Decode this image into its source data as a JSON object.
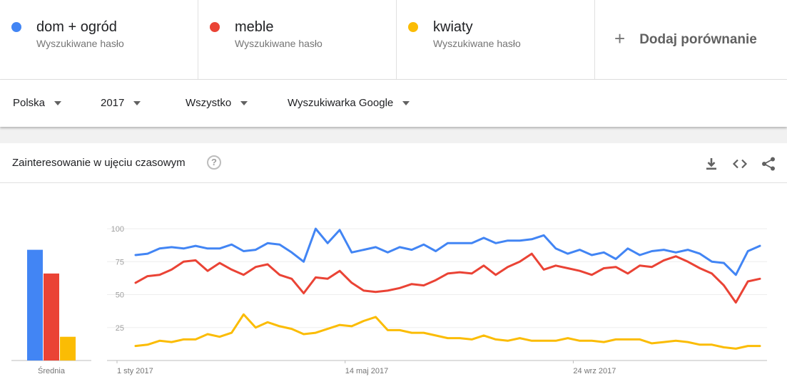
{
  "terms": [
    {
      "name": "dom + ogród",
      "sub": "Wyszukiwane hasło",
      "color": "#4285f4"
    },
    {
      "name": "meble",
      "sub": "Wyszukiwane hasło",
      "color": "#ea4335"
    },
    {
      "name": "kwiaty",
      "sub": "Wyszukiwane hasło",
      "color": "#fbbc04"
    }
  ],
  "add_compare": {
    "plus": "+",
    "label": "Dodaj porównanie"
  },
  "filters": {
    "region": "Polska",
    "time": "2017",
    "category": "Wszystko",
    "property": "Wyszukiwarka Google"
  },
  "card": {
    "title": "Zainteresowanie w ujęciu czasowym",
    "help": "?",
    "icons": [
      "download-icon",
      "embed-icon",
      "share-icon"
    ]
  },
  "chart_data": {
    "type": "line",
    "title": "Zainteresowanie w ujęciu czasowym",
    "ylim": [
      0,
      100
    ],
    "yticks": [
      "100",
      "75",
      "50",
      "25"
    ],
    "x_tick_labels": [
      "1 sty 2017",
      "14 maj 2017",
      "24 wrz 2017"
    ],
    "grid": true,
    "average_label": "Średnia",
    "averages": [
      84,
      66,
      18
    ],
    "series": [
      {
        "name": "dom + ogród",
        "color": "#4285f4",
        "values": [
          80,
          81,
          85,
          86,
          85,
          87,
          85,
          85,
          88,
          83,
          84,
          89,
          88,
          82,
          75,
          100,
          89,
          99,
          82,
          84,
          86,
          82,
          86,
          84,
          88,
          83,
          89,
          89,
          89,
          93,
          89,
          91,
          91,
          92,
          95,
          85,
          81,
          84,
          80,
          82,
          77,
          85,
          80,
          83,
          84,
          82,
          84,
          81,
          75,
          74,
          65,
          83,
          87
        ]
      },
      {
        "name": "meble",
        "color": "#ea4335",
        "values": [
          59,
          64,
          65,
          69,
          75,
          76,
          68,
          74,
          69,
          65,
          71,
          73,
          65,
          62,
          51,
          63,
          62,
          68,
          59,
          53,
          52,
          53,
          55,
          58,
          57,
          61,
          66,
          67,
          66,
          72,
          65,
          71,
          75,
          81,
          69,
          72,
          70,
          68,
          65,
          70,
          71,
          66,
          72,
          71,
          76,
          79,
          75,
          70,
          66,
          57,
          44,
          60,
          62
        ]
      },
      {
        "name": "kwiaty",
        "color": "#fbbc04",
        "values": [
          11,
          12,
          15,
          14,
          16,
          16,
          20,
          18,
          21,
          35,
          25,
          29,
          26,
          24,
          20,
          21,
          24,
          27,
          26,
          30,
          33,
          23,
          23,
          21,
          21,
          19,
          17,
          17,
          16,
          19,
          16,
          15,
          17,
          15,
          15,
          15,
          17,
          15,
          15,
          14,
          16,
          16,
          16,
          13,
          14,
          15,
          14,
          12,
          12,
          10,
          9,
          11,
          11
        ]
      }
    ]
  }
}
